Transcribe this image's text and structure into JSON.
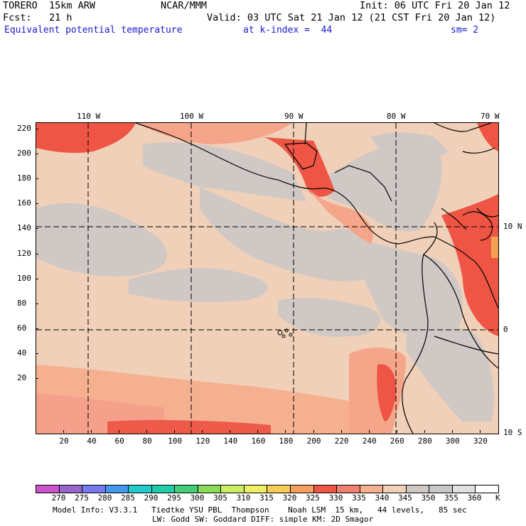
{
  "header": {
    "line1_left": "TORERO  15km ARW",
    "line1_mid": "NCAR/MMM",
    "line1_right": "Init: 06 UTC Fri 20 Jan 12",
    "line2_left": "Fcst:   21 h",
    "line2_right": "Valid: 03 UTC Sat 21 Jan 12 (21 CST Fri 20 Jan 12)",
    "field": "Equivalent potential temperature",
    "level": "at k-index =  44",
    "smooth": "sm= 2"
  },
  "map": {
    "lon_labels": [
      "110 W",
      "100 W",
      "90 W",
      "80 W",
      "70 W"
    ],
    "lat_labels": [
      "10 N",
      "0",
      "10 S"
    ],
    "y_ticks": [
      "220",
      "200",
      "180",
      "160",
      "140",
      "120",
      "100",
      "80",
      "60",
      "40",
      "20"
    ],
    "x_ticks": [
      "20",
      "40",
      "60",
      "80",
      "100",
      "120",
      "140",
      "160",
      "180",
      "200",
      "220",
      "240",
      "260",
      "280",
      "300",
      "320"
    ]
  },
  "legend": {
    "unit": "K",
    "values": [
      "270",
      "275",
      "280",
      "285",
      "290",
      "295",
      "300",
      "305",
      "310",
      "315",
      "320",
      "325",
      "330",
      "335",
      "340",
      "345",
      "350",
      "355",
      "360"
    ],
    "colors": [
      "#cc55cc",
      "#9966cc",
      "#7777ee",
      "#4499ee",
      "#22cccc",
      "#22ccaa",
      "#44cc77",
      "#88dd55",
      "#ccee66",
      "#eeee66",
      "#f5cc55",
      "#f5a060",
      "#ee5544",
      "#f08070",
      "#f5b090",
      "#f0d0b8",
      "#d0c8c4",
      "#c8c8c8",
      "#e0e0e0",
      "#ffffff"
    ]
  },
  "footer": {
    "line1": "Model Info: V3.3.1   Tiedtke YSU PBL  Thompson    Noah LSM  15 km,   44 levels,   85 sec",
    "line2": "LW: Godd SW: Goddard DIFF: simple KM: 2D Smagor"
  }
}
